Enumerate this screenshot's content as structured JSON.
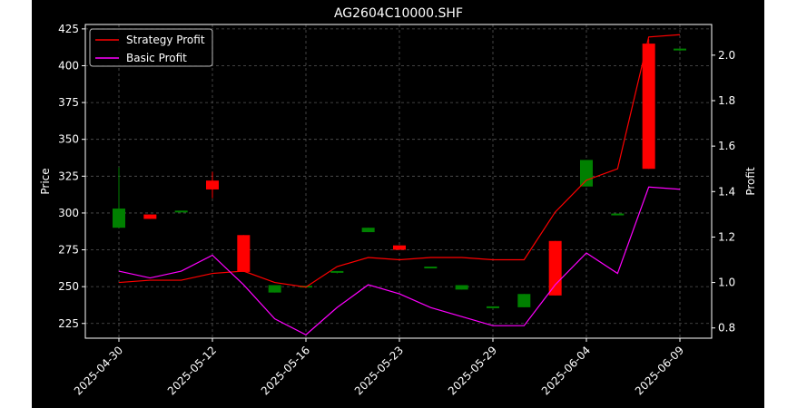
{
  "chart_data": {
    "type": "candlestick",
    "title": "AG2604C10000.SHF",
    "xlabel": "",
    "ylabel": "Price",
    "y2label": "Profit",
    "ylim": [
      215,
      428
    ],
    "y2lim": [
      0.755,
      2.135
    ],
    "yticks": [
      225,
      250,
      275,
      300,
      325,
      350,
      375,
      400,
      425
    ],
    "y2ticks": [
      0.8,
      1.0,
      1.2,
      1.4,
      1.6,
      1.8,
      2.0
    ],
    "x_tick_labels": [
      "2025-04-30",
      "2025-05-12",
      "2025-05-16",
      "2025-05-23",
      "2025-05-29",
      "2025-06-04",
      "2025-06-09"
    ],
    "x_tick_indices": [
      0,
      3,
      6,
      9,
      12,
      15,
      18
    ],
    "grid": true,
    "legend_position": "top-left",
    "colors": {
      "up": "#008000",
      "down": "#ff0000",
      "strategy": "#ff0000",
      "basic": "#ff00ff",
      "background": "#000000",
      "foreground": "#ffffff",
      "grid": "#555555"
    },
    "candles": [
      {
        "open": 290,
        "close": 303,
        "high": 331,
        "low": 290
      },
      {
        "open": 299,
        "close": 296,
        "high": 299,
        "low": 296
      },
      {
        "open": 301,
        "close": 301,
        "high": 301,
        "low": 301
      },
      {
        "open": 322,
        "close": 316,
        "high": 328,
        "low": 310
      },
      {
        "open": 285,
        "close": 260,
        "high": 285,
        "low": 260
      },
      {
        "open": 246,
        "close": 251,
        "high": 251,
        "low": 246
      },
      {
        "open": 250,
        "close": 250,
        "high": 250,
        "low": 250
      },
      {
        "open": 259,
        "close": 260,
        "high": 260,
        "low": 259
      },
      {
        "open": 287,
        "close": 290,
        "high": 290,
        "low": 287
      },
      {
        "open": 278,
        "close": 275,
        "high": 278,
        "low": 275
      },
      {
        "open": 263,
        "close": 263,
        "high": 263,
        "low": 263
      },
      {
        "open": 248,
        "close": 251,
        "high": 251,
        "low": 248
      },
      {
        "open": 235,
        "close": 236,
        "high": 236,
        "low": 235
      },
      {
        "open": 236,
        "close": 245,
        "high": 245,
        "low": 236
      },
      {
        "open": 281,
        "close": 244,
        "high": 281,
        "low": 244
      },
      {
        "open": 318,
        "close": 336,
        "high": 336,
        "low": 318
      },
      {
        "open": 299,
        "close": 299,
        "high": 299,
        "low": 299
      },
      {
        "open": 415,
        "close": 330,
        "high": 418,
        "low": 330
      },
      {
        "open": 410,
        "close": 411,
        "high": 411,
        "low": 410
      }
    ],
    "series": [
      {
        "name": "Strategy Profit",
        "color": "#ff0000",
        "values": [
          1.0,
          1.01,
          1.01,
          1.04,
          1.05,
          1.0,
          0.98,
          1.07,
          1.11,
          1.1,
          1.11,
          1.11,
          1.1,
          1.1,
          1.31,
          1.45,
          1.5,
          2.08,
          2.09
        ]
      },
      {
        "name": "Basic Profit",
        "color": "#ff00ff",
        "values": [
          1.05,
          1.02,
          1.05,
          1.12,
          0.99,
          0.84,
          0.77,
          0.89,
          0.99,
          0.95,
          0.89,
          0.85,
          0.81,
          0.81,
          0.99,
          1.13,
          1.04,
          1.42,
          1.41
        ]
      }
    ]
  }
}
